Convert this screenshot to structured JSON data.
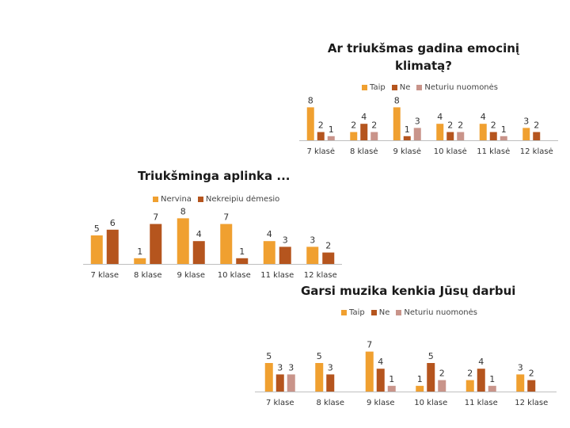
{
  "colors": {
    "taip": "#F0A030",
    "ne": "#B5551E",
    "neturiu": "#C9948A",
    "axis": "#BFBFBF",
    "text": "#333333"
  },
  "chart_data": [
    {
      "type": "bar",
      "title": "Ar triukšmas gadina emocinį klimatą?",
      "legend_position": "top",
      "categories": [
        "7 klasė",
        "8 klasė",
        "9 klasė",
        "10 klasė",
        "11 klasė",
        "12 klasė"
      ],
      "series": [
        {
          "name": "Taip",
          "values": [
            8,
            2,
            8,
            4,
            4,
            3
          ]
        },
        {
          "name": "Ne",
          "values": [
            2,
            4,
            1,
            2,
            2,
            2
          ]
        },
        {
          "name": "Neturiu nuomonės",
          "values": [
            1,
            2,
            3,
            2,
            1,
            null
          ]
        }
      ],
      "ylim": [
        0,
        8
      ]
    },
    {
      "type": "bar",
      "title": "Triukšminga aplinka ...",
      "legend_position": "top",
      "categories": [
        "7 klase",
        "8 klase",
        "9 klase",
        "10 klase",
        "11 klase",
        "12 klase"
      ],
      "series": [
        {
          "name": "Nervina",
          "values": [
            5,
            1,
            8,
            7,
            4,
            3
          ]
        },
        {
          "name": "Nekreipiu dėmesio",
          "values": [
            6,
            7,
            4,
            1,
            3,
            2
          ]
        }
      ],
      "ylim": [
        0,
        8
      ]
    },
    {
      "type": "bar",
      "title": "Garsi muzika kenkia Jūsų darbui",
      "legend_position": "top",
      "categories": [
        "7 klase",
        "8 klase",
        "9 klase",
        "10 klase",
        "11 klase",
        "12 klase"
      ],
      "series": [
        {
          "name": "Taip",
          "values": [
            5,
            5,
            7,
            1,
            2,
            3
          ]
        },
        {
          "name": "Ne",
          "values": [
            3,
            3,
            4,
            5,
            4,
            2
          ]
        },
        {
          "name": "Neturiu nuomonės",
          "values": [
            3,
            null,
            1,
            2,
            1,
            null
          ]
        }
      ],
      "ylim": [
        0,
        7
      ]
    }
  ]
}
